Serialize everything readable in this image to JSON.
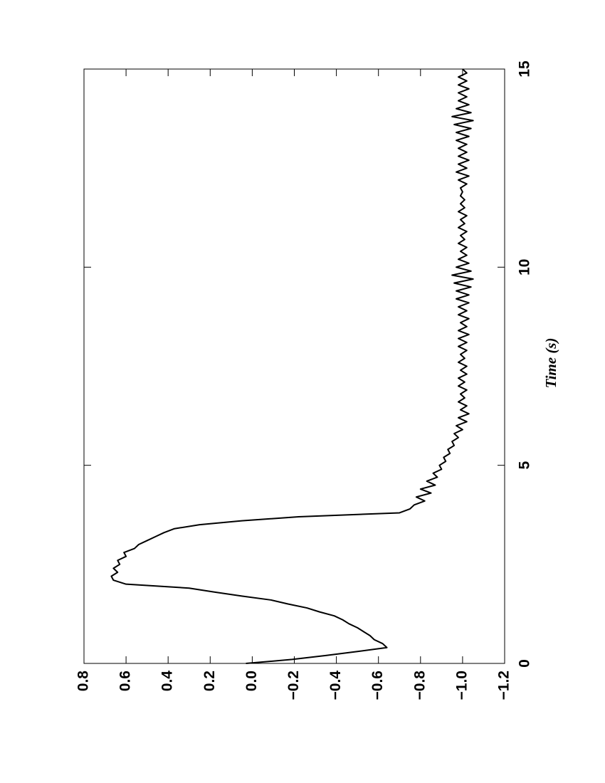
{
  "chart_data": {
    "type": "line",
    "xlabel": "Time (s)",
    "x": [
      0,
      0.1,
      0.2,
      0.3,
      0.4,
      0.5,
      0.6,
      0.7,
      0.8,
      0.9,
      1,
      1.1,
      1.2,
      1.3,
      1.4,
      1.5,
      1.6,
      1.7,
      1.8,
      1.9,
      2,
      2.1,
      2.2,
      2.3,
      2.4,
      2.5,
      2.6,
      2.7,
      2.8,
      2.9,
      3,
      3.1,
      3.2,
      3.3,
      3.4,
      3.5,
      3.6,
      3.7,
      3.8,
      3.9,
      4,
      4.1,
      4.2,
      4.3,
      4.4,
      4.5,
      4.6,
      4.7,
      4.8,
      4.9,
      5,
      5.1,
      5.2,
      5.3,
      5.4,
      5.5,
      5.6,
      5.7,
      5.8,
      5.9,
      6,
      6.1,
      6.2,
      6.3,
      6.4,
      6.5,
      6.6,
      6.7,
      6.8,
      6.9,
      7,
      7.1,
      7.2,
      7.3,
      7.4,
      7.5,
      7.6,
      7.7,
      7.8,
      7.9,
      8,
      8.1,
      8.2,
      8.3,
      8.4,
      8.5,
      8.6,
      8.7,
      8.8,
      8.9,
      9,
      9.1,
      9.2,
      9.3,
      9.4,
      9.5,
      9.6,
      9.7,
      9.8,
      9.9,
      10,
      10.1,
      10.2,
      10.3,
      10.4,
      10.5,
      10.6,
      10.7,
      10.8,
      10.9,
      11,
      11.1,
      11.2,
      11.3,
      11.4,
      11.5,
      11.6,
      11.7,
      11.8,
      11.9,
      12,
      12.1,
      12.2,
      12.3,
      12.4,
      12.5,
      12.6,
      12.7,
      12.8,
      12.9,
      13,
      13.1,
      13.2,
      13.3,
      13.4,
      13.5,
      13.6,
      13.7,
      13.8,
      13.9,
      14,
      14.1,
      14.2,
      14.3,
      14.4,
      14.5,
      14.6,
      14.7,
      14.8,
      14.9,
      15
    ],
    "values": [
      0.03,
      -0.19,
      -0.35,
      -0.5,
      -0.64,
      -0.62,
      -0.58,
      -0.56,
      -0.53,
      -0.5,
      -0.46,
      -0.43,
      -0.39,
      -0.32,
      -0.26,
      -0.17,
      -0.09,
      0.05,
      0.18,
      0.3,
      0.6,
      0.66,
      0.67,
      0.64,
      0.66,
      0.63,
      0.64,
      0.6,
      0.61,
      0.56,
      0.54,
      0.5,
      0.46,
      0.42,
      0.37,
      0.25,
      0.05,
      -0.22,
      -0.7,
      -0.75,
      -0.77,
      -0.82,
      -0.78,
      -0.85,
      -0.8,
      -0.87,
      -0.83,
      -0.88,
      -0.86,
      -0.9,
      -0.89,
      -0.92,
      -0.91,
      -0.94,
      -0.93,
      -0.96,
      -0.95,
      -0.98,
      -0.96,
      -1.0,
      -0.97,
      -1.02,
      -0.98,
      -1.03,
      -0.99,
      -1.02,
      -0.98,
      -1.01,
      -0.99,
      -1.02,
      -0.98,
      -1.01,
      -0.98,
      -1.02,
      -0.99,
      -1.02,
      -0.98,
      -1.01,
      -0.99,
      -1.02,
      -0.98,
      -1.02,
      -0.98,
      -1.03,
      -0.98,
      -1.02,
      -0.99,
      -1.03,
      -0.98,
      -1.02,
      -0.98,
      -1.03,
      -0.97,
      -1.03,
      -0.97,
      -1.04,
      -0.96,
      -1.05,
      -0.95,
      -1.04,
      -0.97,
      -1.03,
      -0.98,
      -1.02,
      -0.99,
      -1.02,
      -0.98,
      -1.01,
      -0.99,
      -1.02,
      -0.98,
      -1.01,
      -0.99,
      -1.02,
      -0.98,
      -1.01,
      -0.99,
      -1.01,
      -0.99,
      -1.0,
      -0.99,
      -1.02,
      -0.98,
      -1.03,
      -0.97,
      -1.02,
      -0.98,
      -1.03,
      -0.98,
      -1.02,
      -0.98,
      -1.02,
      -0.97,
      -1.03,
      -0.97,
      -1.04,
      -0.96,
      -1.05,
      -0.95,
      -1.04,
      -0.97,
      -1.03,
      -0.98,
      -1.02,
      -0.98,
      -1.03,
      -0.98,
      -1.02,
      -0.98,
      -1.02,
      -1.0
    ],
    "color": "#000000",
    "xlim": [
      0,
      15
    ],
    "xticks": [
      0,
      5,
      10,
      15
    ],
    "ylim": [
      -1.2,
      0.8
    ],
    "yticks": [
      0.8,
      0.6,
      0.4,
      0.2,
      {
        "value": 0,
        "label": "0.0"
      },
      {
        "value": -0.2,
        "label": "−0.2"
      },
      {
        "value": -0.4,
        "label": "−0.4"
      },
      {
        "value": -0.6,
        "label": "−0.6"
      },
      {
        "value": -0.8,
        "label": "−0.8"
      },
      {
        "value": -1.0,
        "label": "−1.0"
      },
      {
        "value": -1.2,
        "label": "−1.2"
      }
    ]
  }
}
